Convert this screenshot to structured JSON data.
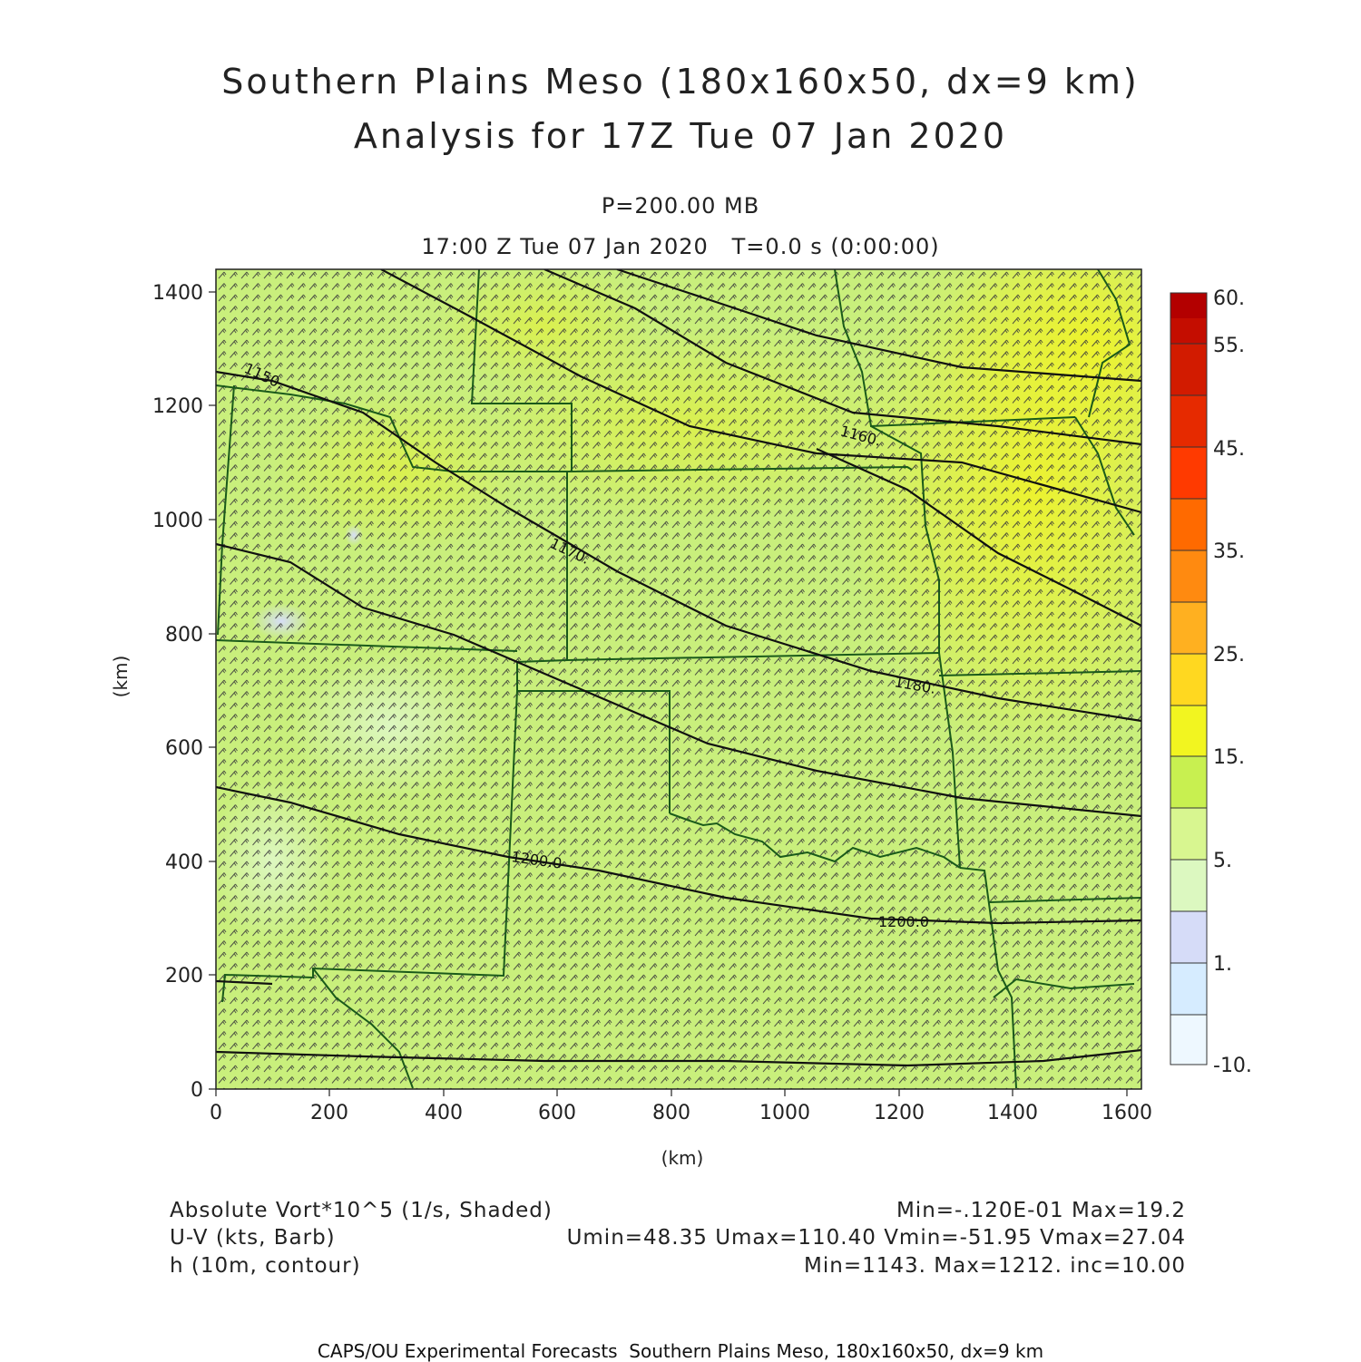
{
  "header": {
    "title_line1": "Southern Plains Meso (180x160x50, dx=9 km)",
    "title_line2": "Analysis for 17Z Tue 07 Jan 2020",
    "level": "P=200.00 MB",
    "valid_time": "17:00 Z Tue 07 Jan 2020   T=0.0 s (0:00:00)"
  },
  "axes": {
    "x_label": "(km)",
    "y_label": "(km)",
    "x_ticks": [
      "0",
      "200",
      "400",
      "600",
      "800",
      "1000",
      "1200",
      "1400",
      "1600"
    ],
    "y_ticks": [
      "0",
      "200",
      "400",
      "600",
      "800",
      "1000",
      "1200",
      "1400"
    ],
    "x_range": [
      0,
      1630
    ],
    "y_range": [
      0,
      1440
    ]
  },
  "colorbar": {
    "labels": [
      "60.",
      "55.",
      "45.",
      "35.",
      "25.",
      "15.",
      "5.",
      "1.",
      "-10."
    ],
    "colors": [
      "#b30000",
      "#d21b00",
      "#f03000",
      "#ff6a00",
      "#ff8c10",
      "#ffb020",
      "#ffd820",
      "#f4f020",
      "#c8f050",
      "#d8f690",
      "#d6f8b8",
      "#d6dcf8",
      "#d6ecff",
      "#eef8ff"
    ]
  },
  "contours": {
    "labels": [
      "1150.",
      "1160.",
      "1170.",
      "1180.",
      "1200.0",
      "1200.0"
    ]
  },
  "legend": {
    "rows": [
      {
        "left": "Absolute Vort*10^5 (1/s, Shaded)",
        "right": "Min=-.120E-01 Max=19.2"
      },
      {
        "left": "U-V (kts, Barb)",
        "right": "Umin=48.35 Umax=110.40 Vmin=-51.95 Vmax=27.04"
      },
      {
        "left": "h (10m, contour)",
        "right": "Min=1143. Max=1212. inc=10.00"
      }
    ]
  },
  "footer": {
    "text": "CAPS/OU Experimental Forecasts  Southern Plains Meso, 180x160x50, dx=9 km"
  },
  "colors": {
    "state_border": "#1a5a1a",
    "contour": "#111111",
    "barb": "#333333",
    "field_base": "#c9ef7c"
  }
}
